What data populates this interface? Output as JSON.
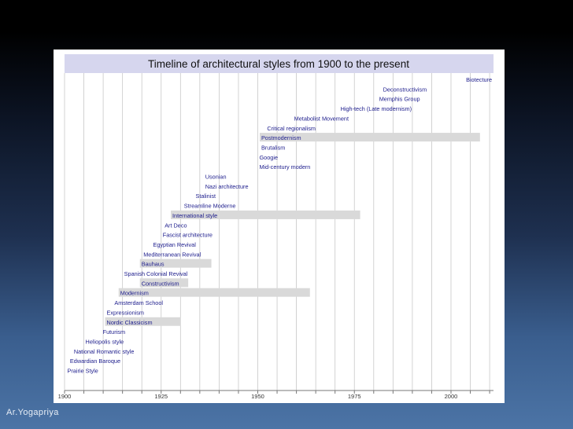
{
  "author": "Ar.Yogapriya",
  "chart_data": {
    "type": "timeline",
    "title": "Timeline of architectural styles from 1900 to the present",
    "xlim": [
      1900,
      2011
    ],
    "grid_step": 5,
    "x_ticks": [
      1900,
      1925,
      1950,
      1975,
      2000
    ],
    "colors": {
      "title_bar": "#d6d6ee",
      "label_text": "#1c1c8c",
      "period_bar": "#d9d9d9",
      "grid": "#c8c8c8",
      "tick_text": "#333333"
    },
    "styles": [
      {
        "name": "Biotecture",
        "start": 2003.5
      },
      {
        "name": "Deconstructivism",
        "start": 1982
      },
      {
        "name": "Memphis Group",
        "start": 1981
      },
      {
        "name": "High-tech (Late modernism)",
        "start": 1971
      },
      {
        "name": "Metabolist Movement",
        "start": 1959
      },
      {
        "name": "Critical regionalism",
        "start": 1952
      },
      {
        "name": "Postmodernism",
        "start": 1950.5,
        "end": 2007.5
      },
      {
        "name": "Brutalism",
        "start": 1950.5
      },
      {
        "name": "Googie",
        "start": 1950
      },
      {
        "name": "Mid-century modern",
        "start": 1950
      },
      {
        "name": "Usonian",
        "start": 1936
      },
      {
        "name": "Nazi architecture",
        "start": 1936
      },
      {
        "name": "Stalinist",
        "start": 1933.5
      },
      {
        "name": "Streamline Moderne",
        "start": 1930.5
      },
      {
        "name": "International style",
        "start": 1927.5,
        "end": 1976.5
      },
      {
        "name": "Art Deco",
        "start": 1925.5
      },
      {
        "name": "Fascist architecture",
        "start": 1925
      },
      {
        "name": "Egyptian Revival",
        "start": 1922.5
      },
      {
        "name": "Mediterranean Revival",
        "start": 1920
      },
      {
        "name": "Bauhaus",
        "start": 1919.5,
        "end": 1938
      },
      {
        "name": "Spanish Colonial Revival",
        "start": 1915
      },
      {
        "name": "Constructivism",
        "start": 1919.5,
        "end": 1932
      },
      {
        "name": "Modernism",
        "start": 1914,
        "end": 1963.5
      },
      {
        "name": "Amsterdam School",
        "start": 1912.5
      },
      {
        "name": "Expressionism",
        "start": 1910.5
      },
      {
        "name": "Nordic Classicism",
        "start": 1910.5,
        "end": 1930
      },
      {
        "name": "Futurism",
        "start": 1909.5
      },
      {
        "name": "Heliopolis style",
        "start": 1905
      },
      {
        "name": "National Romantic style",
        "start": 1902
      },
      {
        "name": "Edwardian Baroque",
        "start": 1901
      },
      {
        "name": "Prairie Style",
        "start": 1900.3
      }
    ]
  }
}
